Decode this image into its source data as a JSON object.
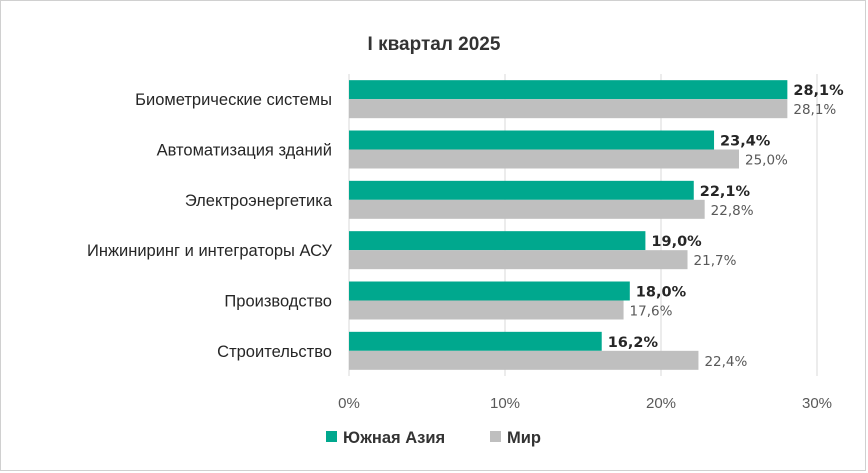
{
  "chart_data": {
    "type": "bar",
    "orientation": "horizontal",
    "title": "I квартал 2025",
    "categories": [
      "Биометрические системы",
      "Автоматизация зданий",
      "Электроэнергетика",
      "Инжиниринг и интеграторы АСУ",
      "Производство",
      "Строительство"
    ],
    "series": [
      {
        "name": "Южная Азия",
        "color": "#00a88e",
        "values": [
          28.1,
          23.4,
          22.1,
          19.0,
          18.0,
          16.2
        ],
        "labels": [
          "28,1%",
          "23,4%",
          "22,1%",
          "19,0%",
          "18,0%",
          "16,2%"
        ]
      },
      {
        "name": "Мир",
        "color": "#bfbfbf",
        "values": [
          28.1,
          25.0,
          22.8,
          21.7,
          17.6,
          22.4
        ],
        "labels": [
          "28,1%",
          "25,0%",
          "22,8%",
          "21,7%",
          "17,6%",
          "22,4%"
        ]
      }
    ],
    "xlim": [
      0,
      30
    ],
    "xticks": [
      0,
      10,
      20,
      30
    ],
    "xtick_labels": [
      "0%",
      "10%",
      "20%",
      "30%"
    ],
    "grid": "vertical",
    "legend_position": "bottom"
  }
}
